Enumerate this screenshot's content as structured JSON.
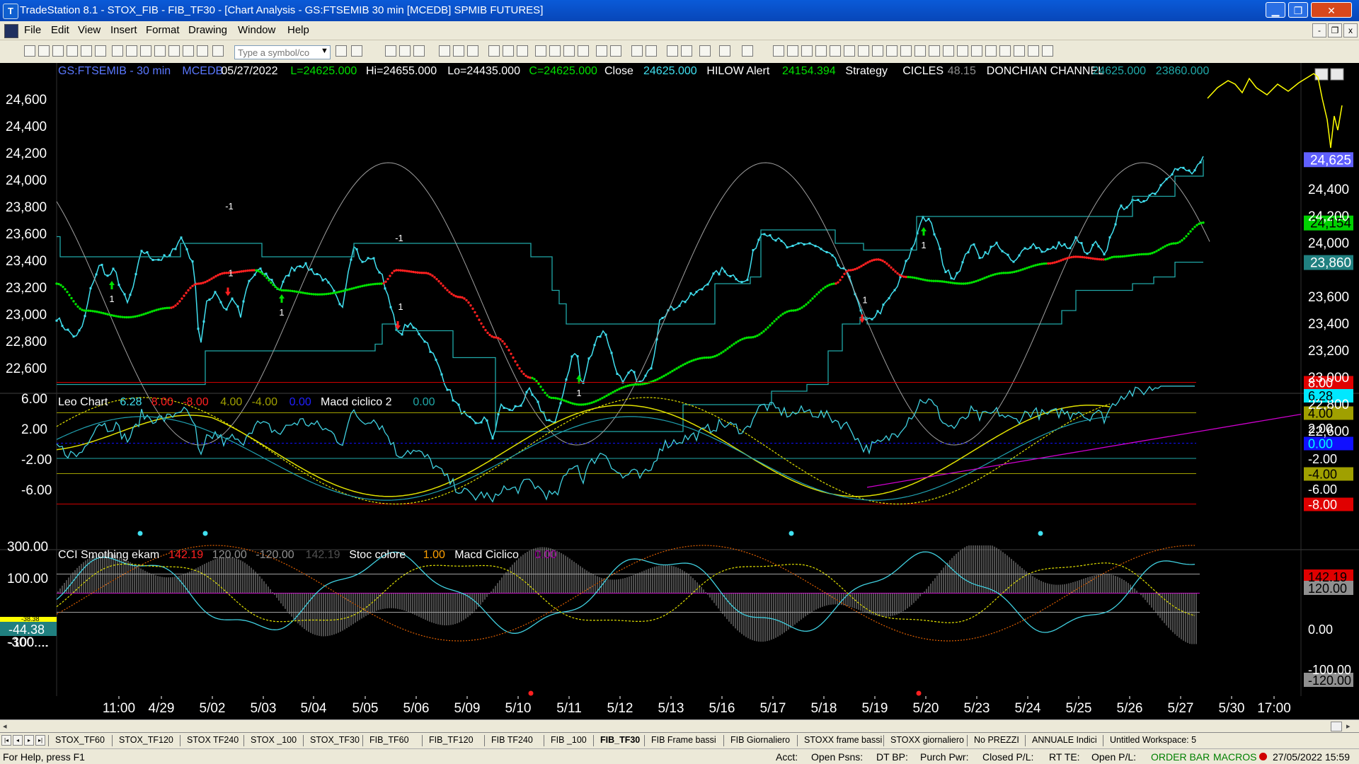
{
  "window": {
    "title": "TradeStation 8.1 - STOX_FIB - FIB_TF30 - [Chart Analysis - GS:FTSEMIB  30 min  [MCEDB] SPMIB FUTURES]",
    "min_label": "▁",
    "max_label": "❐",
    "close_label": "✕"
  },
  "menu": {
    "items": [
      "File",
      "Edit",
      "View",
      "Insert",
      "Format",
      "Drawing",
      "Window",
      "Help"
    ],
    "mdi_min": "-",
    "mdi_restore": "❐",
    "mdi_close": "x"
  },
  "toolbar": {
    "symbol_placeholder": "Type a symbol/co"
  },
  "price_panel": {
    "header": [
      {
        "text": "GS:FTSEMIB - 30 min",
        "color": "#5a78ff"
      },
      {
        "text": "MCEDB",
        "color": "#5a78ff"
      },
      {
        "text": "05/27/2022",
        "color": "#ffffff"
      },
      {
        "text": "L=24625.000",
        "color": "#00e000"
      },
      {
        "text": "Hi=24655.000",
        "color": "#ffffff"
      },
      {
        "text": "Lo=24435.000",
        "color": "#ffffff"
      },
      {
        "text": "C=24625.000",
        "color": "#00e000"
      },
      {
        "text": "Close",
        "color": "#ffffff"
      },
      {
        "text": "24625.000",
        "color": "#40e0f0"
      },
      {
        "text": "HILOW Alert",
        "color": "#ffffff"
      },
      {
        "text": "24154.394",
        "color": "#00e000"
      },
      {
        "text": "Strategy",
        "color": "#ffffff"
      },
      {
        "text": "CICLES",
        "color": "#ffffff"
      },
      {
        "text": "48.15",
        "color": "#909090"
      },
      {
        "text": "DONCHIAN CHANNEL",
        "color": "#ffffff"
      },
      {
        "text": "24625.000",
        "color": "#20a8a8"
      },
      {
        "text": "23860.000",
        "color": "#20a8a8"
      }
    ],
    "y_ticks": [
      "24,600",
      "24,400",
      "24,200",
      "24,000",
      "23,800",
      "23,600",
      "23,400",
      "23,200",
      "23,000",
      "22,800",
      "22,600"
    ],
    "right_ticks": [
      "24,400",
      "24,200",
      "24,000",
      "23,600",
      "23,400",
      "23,200",
      "23,000",
      "22,800",
      "22,600"
    ],
    "right_markers": [
      {
        "text": "24,625",
        "bg": "#6060ff",
        "fg": "#ffffff"
      },
      {
        "text": "24,154",
        "bg": "#00d000",
        "fg": "#000000"
      },
      {
        "text": "23,860",
        "bg": "#208080",
        "fg": "#ffffff"
      }
    ],
    "signals": [
      "1",
      "1",
      "1",
      "1",
      "1",
      "1",
      "1",
      "1"
    ],
    "neg_signals": [
      "-1",
      "-1"
    ]
  },
  "leo_panel": {
    "header": [
      {
        "text": "Leo Chart",
        "color": "#ffffff"
      },
      {
        "text": "6.28",
        "color": "#40e0f0"
      },
      {
        "text": "8.00",
        "color": "#ff2020"
      },
      {
        "text": "-8.00",
        "color": "#ff2020"
      },
      {
        "text": "4.00",
        "color": "#a0a000"
      },
      {
        "text": "-4.00",
        "color": "#a0a000"
      },
      {
        "text": "0.00",
        "color": "#2020ff"
      },
      {
        "text": "Macd ciclico 2",
        "color": "#ffffff"
      },
      {
        "text": "0.00",
        "color": "#20a8a8"
      }
    ],
    "y_ticks": [
      "6.00",
      "2.00",
      "-2.00",
      "-6.00"
    ],
    "right_labels": [
      {
        "text": "8.00",
        "bg": "#e00000",
        "fg": "#ffffff"
      },
      {
        "text": "6.28",
        "bg": "#00e8ff",
        "fg": "#000000"
      },
      {
        "text": "4.00",
        "bg": "#a0a000",
        "fg": "#000000"
      },
      {
        "text": "2.00",
        "bg": "",
        "fg": "#ffffff"
      },
      {
        "text": "0.00",
        "bg": "#1010ff",
        "fg": "#00ffff"
      },
      {
        "text": "-2.00",
        "bg": "",
        "fg": "#ffffff"
      },
      {
        "text": "-4.00",
        "bg": "#a0a000",
        "fg": "#000000"
      },
      {
        "text": "-6.00",
        "bg": "",
        "fg": "#ffffff"
      },
      {
        "text": "-8.00",
        "bg": "#e00000",
        "fg": "#ffffff"
      }
    ]
  },
  "cci_panel": {
    "header": [
      {
        "text": "CCI Smothing ekam",
        "color": "#ffffff"
      },
      {
        "text": "142.19",
        "color": "#ff2020"
      },
      {
        "text": "120.00",
        "color": "#909090"
      },
      {
        "text": "-120.00",
        "color": "#909090"
      },
      {
        "text": "142.19",
        "color": "#505050"
      },
      {
        "text": "Stoc colore",
        "color": "#ffffff"
      },
      {
        "text": "1.00",
        "color": "#ffa000"
      },
      {
        "text": "Macd Ciclico",
        "color": "#ffffff"
      },
      {
        "text": "0.00",
        "color": "#a000a0"
      }
    ],
    "y_ticks": [
      "300.00",
      "100.00",
      "-300...."
    ],
    "right_labels": [
      {
        "text": "142.19",
        "bg": "#e00000",
        "fg": "#000000"
      },
      {
        "text": "120.00",
        "bg": "#909090",
        "fg": "#000000"
      },
      {
        "text": "0.00",
        "bg": "",
        "fg": "#ffffff"
      },
      {
        "text": "-100.00",
        "bg": "",
        "fg": "#ffffff"
      },
      {
        "text": "-120.00",
        "bg": "#909090",
        "fg": "#000000"
      }
    ],
    "left_markers": [
      {
        "text": "-44.38",
        "bg": "#208080",
        "fg": "#ffffff"
      },
      {
        "text": "-38.38",
        "bg": "#ffff00",
        "fg": "#000000"
      },
      {
        "text": "-100....",
        "bg": "",
        "fg": "#ffffff"
      }
    ]
  },
  "x_axis": {
    "labels": [
      "11:00",
      "4/29",
      "5/02",
      "5/03",
      "5/04",
      "5/05",
      "5/06",
      "5/09",
      "5/10",
      "5/11",
      "5/12",
      "5/13",
      "5/16",
      "5/17",
      "5/18",
      "5/19",
      "5/20",
      "5/23",
      "5/24",
      "5/25",
      "5/26",
      "5/27",
      "5/30",
      "17:00"
    ]
  },
  "tabs": {
    "items": [
      "STOX_TF60",
      "STOX_TF120",
      "STOX TF240",
      "STOX _100",
      "STOX_TF30",
      "FIB_TF60",
      "FIB_TF120",
      "FIB TF240",
      "FIB _100",
      "FIB_TF30",
      "FIB Frame bassi",
      "FIB Giornaliero",
      "STOXX frame bassi",
      "STOXX giornaliero",
      "No PREZZI",
      "ANNUALE Indici",
      "Untitled Workspace:  5"
    ],
    "active": "FIB_TF30",
    "nav": [
      "|◂",
      "◂",
      "▸",
      "▸|"
    ]
  },
  "status": {
    "help": "For Help, press F1",
    "acct": "Acct:",
    "open_psns": "Open Psns:",
    "dt_bp": "DT BP:",
    "purch_pwr": "Purch Pwr:",
    "closed_pl": "Closed P/L:",
    "rt_te": "RT TE:",
    "open_pl": "Open P/L:",
    "order_bar": "ORDER BAR",
    "macros": "MACROS",
    "datetime": "27/05/2022 15:59"
  },
  "colors": {
    "price_line": "#40e0f0",
    "hilow_up": "#00e000",
    "hilow_down": "#ff2020",
    "donchian": "#20a8a8",
    "cycle": "#a0a0a0",
    "projection": "#ffff00",
    "trendline": "#d000d0"
  }
}
